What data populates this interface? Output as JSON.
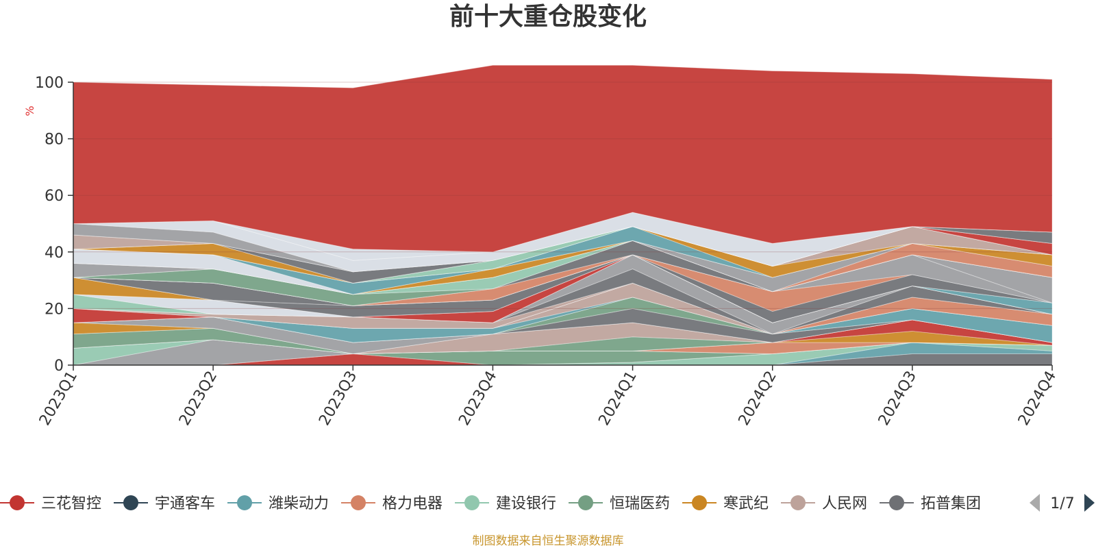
{
  "chart_data": {
    "type": "area",
    "stacked": true,
    "title": "前十大重仓股变化",
    "ylabel": "%",
    "ylim": [
      0,
      100
    ],
    "yticks": [
      0,
      20,
      40,
      60,
      80,
      100
    ],
    "grid": true,
    "categories": [
      "2023Q1",
      "2023Q2",
      "2023Q3",
      "2023Q4",
      "2024Q1",
      "2024Q2",
      "2024Q3",
      "2024Q4"
    ],
    "series": [
      {
        "name": "",
        "color": "#6e7074",
        "values": [
          0,
          0,
          0,
          0,
          0,
          0,
          4,
          4
        ]
      },
      {
        "name": "",
        "color": "#61a0a8",
        "values": [
          0,
          0,
          0,
          0,
          0,
          0,
          4,
          1
        ]
      },
      {
        "name": "",
        "color": "#91c7ae",
        "values": [
          0,
          0,
          0,
          0,
          1,
          4,
          0,
          2
        ]
      },
      {
        "name": "",
        "color": "#c23531",
        "values": [
          0,
          0,
          4,
          0,
          0,
          0,
          0,
          0
        ]
      },
      {
        "name": "",
        "color": "#749f83",
        "values": [
          0,
          0,
          0,
          5,
          4,
          0,
          0,
          0
        ]
      },
      {
        "name": "",
        "color": "#9b9ca0",
        "values": [
          0,
          9,
          0,
          0,
          0,
          0,
          0,
          0
        ]
      },
      {
        "name": "",
        "color": "#91c7ae",
        "values": [
          6,
          0,
          0,
          0,
          0,
          0,
          0,
          0
        ]
      },
      {
        "name": "",
        "color": "#d48265",
        "values": [
          0,
          0,
          0,
          0,
          0,
          4,
          0,
          0
        ]
      },
      {
        "name": "",
        "color": "#ca8622",
        "values": [
          0,
          0,
          0,
          0,
          0,
          0,
          4,
          0
        ]
      },
      {
        "name": "",
        "color": "#c23531",
        "values": [
          0,
          0,
          0,
          0,
          0,
          0,
          4,
          1
        ]
      },
      {
        "name": "",
        "color": "#749f83",
        "values": [
          5,
          4,
          0,
          0,
          5,
          0,
          0,
          0
        ]
      },
      {
        "name": "",
        "color": "#bda29a",
        "values": [
          0,
          0,
          0,
          6,
          5,
          0,
          0,
          0
        ]
      },
      {
        "name": "",
        "color": "#ca8622",
        "values": [
          4,
          0,
          0,
          0,
          0,
          0,
          0,
          0
        ]
      },
      {
        "name": "",
        "color": "#9b9ca0",
        "values": [
          0,
          4,
          4,
          0,
          0,
          0,
          0,
          0
        ]
      },
      {
        "name": "",
        "color": "#6e7074",
        "values": [
          0,
          0,
          0,
          0,
          5,
          3,
          0,
          0
        ]
      },
      {
        "name": "",
        "color": "#749f83",
        "values": [
          0,
          0,
          0,
          0,
          4,
          0,
          0,
          0
        ]
      },
      {
        "name": "",
        "color": "#61a0a8",
        "values": [
          0,
          0,
          0,
          0,
          0,
          0,
          4,
          6
        ]
      },
      {
        "name": "",
        "color": "#61a0a8",
        "values": [
          0,
          0,
          5,
          2,
          0,
          0,
          0,
          0
        ]
      },
      {
        "name": "",
        "color": "#bda29a",
        "values": [
          0,
          0,
          0,
          0,
          5,
          0,
          0,
          0
        ]
      },
      {
        "name": "",
        "color": "#c23531",
        "values": [
          5,
          0,
          0,
          0,
          0,
          0,
          0,
          0
        ]
      },
      {
        "name": "",
        "color": "#d48265",
        "values": [
          0,
          0,
          0,
          0,
          0,
          0,
          4,
          4
        ]
      },
      {
        "name": "",
        "color": "#bda29a",
        "values": [
          0,
          1,
          4,
          2,
          0,
          0,
          0,
          0
        ]
      },
      {
        "name": "",
        "color": "#6e7074",
        "values": [
          0,
          0,
          0,
          0,
          5,
          0,
          4,
          0
        ]
      },
      {
        "name": "",
        "color": "#9b9ca0",
        "values": [
          0,
          0,
          0,
          0,
          5,
          4,
          0,
          0
        ]
      },
      {
        "name": "",
        "color": "#91c7ae",
        "values": [
          5,
          0,
          0,
          0,
          0,
          0,
          0,
          0
        ]
      },
      {
        "name": "",
        "color": "#d7dce4",
        "values": [
          0,
          5,
          0,
          0,
          0,
          0,
          0,
          0
        ]
      },
      {
        "name": "",
        "color": "#c23531",
        "values": [
          0,
          0,
          0,
          4,
          0,
          0,
          0,
          0
        ]
      },
      {
        "name": "",
        "color": "#ca8622",
        "values": [
          6,
          0,
          0,
          0,
          0,
          0,
          0,
          0
        ]
      },
      {
        "name": "",
        "color": "#61a0a8",
        "values": [
          0,
          0,
          0,
          0,
          0,
          0,
          0,
          4
        ]
      },
      {
        "name": "",
        "color": "#6e7074",
        "values": [
          0,
          0,
          4,
          4,
          0,
          0,
          0,
          0
        ]
      },
      {
        "name": "",
        "color": "#749f83",
        "values": [
          0,
          0,
          0,
          0,
          0,
          0,
          0,
          0
        ]
      },
      {
        "name": "",
        "color": "#6e7074",
        "values": [
          0,
          6,
          0,
          0,
          0,
          4,
          4,
          0
        ]
      },
      {
        "name": "",
        "color": "#d48265",
        "values": [
          0,
          0,
          0,
          0,
          0,
          7,
          0,
          0
        ]
      },
      {
        "name": "",
        "color": "#9b9ca0",
        "values": [
          0,
          0,
          0,
          0,
          0,
          0,
          7,
          0
        ]
      },
      {
        "name": "",
        "color": "#9b9ca0",
        "values": [
          0,
          0,
          0,
          0,
          0,
          0,
          0,
          9
        ]
      },
      {
        "name": "",
        "color": "#d48265",
        "values": [
          0,
          0,
          0,
          4,
          0,
          0,
          0,
          0
        ]
      },
      {
        "name": "",
        "color": "#6e7074",
        "values": [
          0,
          0,
          0,
          0,
          5,
          0,
          0,
          0
        ]
      },
      {
        "name": "",
        "color": "#749f83",
        "values": [
          0,
          5,
          4,
          0,
          0,
          0,
          0,
          0
        ]
      },
      {
        "name": "",
        "color": "#91c7ae",
        "values": [
          0,
          0,
          0,
          4,
          0,
          0,
          0,
          0
        ]
      },
      {
        "name": "",
        "color": "#9b9ca0",
        "values": [
          5,
          0,
          0,
          0,
          0,
          0,
          0,
          0
        ]
      },
      {
        "name": "",
        "color": "#d48265",
        "values": [
          0,
          0,
          0,
          0,
          0,
          0,
          4,
          4
        ]
      },
      {
        "name": "",
        "color": "#9b9ca0",
        "values": [
          0,
          0,
          0,
          0,
          0,
          5,
          0,
          0
        ]
      },
      {
        "name": "",
        "color": "#ca8622",
        "values": [
          0,
          0,
          0,
          3,
          0,
          0,
          0,
          4
        ]
      },
      {
        "name": "",
        "color": "#d7dce4",
        "values": [
          5,
          5,
          0,
          0,
          0,
          0,
          0,
          0
        ]
      },
      {
        "name": "",
        "color": "#61a0a8",
        "values": [
          0,
          0,
          4,
          0,
          5,
          0,
          0,
          0
        ]
      },
      {
        "name": "",
        "color": "#ca8622",
        "values": [
          0,
          0,
          0,
          0,
          0,
          4,
          0,
          0
        ]
      },
      {
        "name": "",
        "color": "#bda29a",
        "values": [
          0,
          0,
          0,
          0,
          0,
          0,
          6,
          0
        ]
      },
      {
        "name": "",
        "color": "#91c7ae",
        "values": [
          0,
          0,
          0,
          3,
          0,
          0,
          0,
          0
        ]
      },
      {
        "name": "",
        "color": "#ca8622",
        "values": [
          0,
          4,
          0,
          0,
          0,
          0,
          0,
          0
        ]
      },
      {
        "name": "",
        "color": "#c23531",
        "values": [
          0,
          0,
          0,
          0,
          0,
          0,
          0,
          4
        ]
      },
      {
        "name": "",
        "color": "#6e7074",
        "values": [
          0,
          0,
          4,
          0,
          0,
          0,
          0,
          0
        ]
      },
      {
        "name": "",
        "color": "#bda29a",
        "values": [
          5,
          0,
          0,
          0,
          0,
          0,
          0,
          0
        ]
      },
      {
        "name": "",
        "color": "#6e7074",
        "values": [
          0,
          0,
          0,
          0,
          0,
          0,
          0,
          4
        ]
      },
      {
        "name": "",
        "color": "#9b9ca0",
        "values": [
          4,
          4,
          0,
          0,
          0,
          0,
          0,
          0
        ]
      },
      {
        "name": "",
        "color": "#d7dce4",
        "values": [
          0,
          4,
          4,
          3,
          5,
          8,
          0,
          0
        ]
      },
      {
        "name": "",
        "color": "#d7dce4",
        "values": [
          0,
          0,
          4,
          0,
          0,
          0,
          0,
          0
        ]
      },
      {
        "name": "",
        "color": "#d7dce4",
        "values": [
          0,
          0,
          0,
          0,
          0,
          0,
          0,
          0
        ]
      },
      {
        "name": "",
        "color": "#d7dce4",
        "values": [
          0,
          0,
          0,
          0,
          0,
          0,
          0,
          0
        ]
      },
      {
        "name": "",
        "color": "#d7dce4",
        "values": [
          0,
          0,
          0,
          0,
          0,
          0,
          0,
          0
        ]
      },
      {
        "name": "",
        "color": "#c23531",
        "values": [
          50,
          48,
          57,
          66,
          52,
          61,
          54,
          54
        ]
      }
    ],
    "legend": {
      "position": "bottom",
      "items": [
        {
          "label": "三花智控",
          "color": "#c23531"
        },
        {
          "label": "宇通客车",
          "color": "#2f4554"
        },
        {
          "label": "潍柴动力",
          "color": "#61a0a8"
        },
        {
          "label": "格力电器",
          "color": "#d48265"
        },
        {
          "label": "建设银行",
          "color": "#91c7ae"
        },
        {
          "label": "恒瑞医药",
          "color": "#749f83"
        },
        {
          "label": "寒武纪",
          "color": "#ca8622"
        },
        {
          "label": "人民网",
          "color": "#bda29a"
        },
        {
          "label": "拓普集团",
          "color": "#6e7074"
        }
      ],
      "page": "1/7"
    },
    "source": "制图数据来自恒生聚源数据库"
  }
}
